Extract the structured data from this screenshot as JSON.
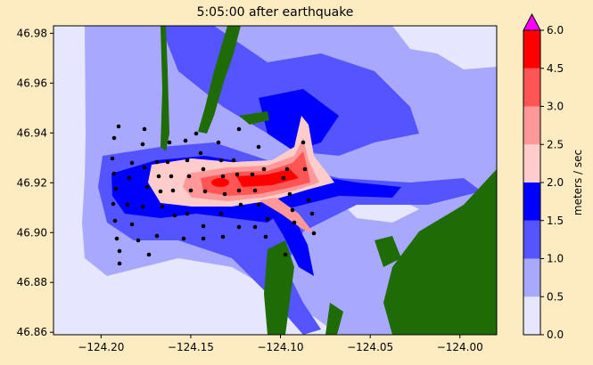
{
  "figure": {
    "title": "5:05:00 after earthquake",
    "background": "#fdebc2"
  },
  "map": {
    "x_ticks": [
      {
        "value": -124.2,
        "label": "−124.20"
      },
      {
        "value": -124.15,
        "label": "−124.15"
      },
      {
        "value": -124.1,
        "label": "−124.10"
      },
      {
        "value": -124.05,
        "label": "−124.05"
      },
      {
        "value": -124.0,
        "label": "−124.00"
      }
    ],
    "y_ticks": [
      {
        "value": 46.86,
        "label": "46.86"
      },
      {
        "value": 46.88,
        "label": "46.88"
      },
      {
        "value": 46.9,
        "label": "46.90"
      },
      {
        "value": 46.92,
        "label": "46.92"
      },
      {
        "value": 46.94,
        "label": "46.94"
      },
      {
        "value": 46.96,
        "label": "46.96"
      },
      {
        "value": 46.98,
        "label": "46.98"
      }
    ],
    "xlim": [
      -124.2265,
      -123.9795
    ],
    "ylim": [
      46.859,
      46.983
    ],
    "land_color": "#1f6b06"
  },
  "colorbar": {
    "label": "meters / sec",
    "extend": "max",
    "extend_color": "#ff00ff",
    "levels": [
      {
        "value": 0.0,
        "label": "0.0",
        "color": "#e6e6ff"
      },
      {
        "value": 0.5,
        "label": "0.5",
        "color": "#a8a8ff"
      },
      {
        "value": 1.0,
        "label": "1.0",
        "color": "#5555ff"
      },
      {
        "value": 1.5,
        "label": "1.5",
        "color": "#0000ff"
      },
      {
        "value": 2.0,
        "label": "2.0",
        "color": "#ffcccc"
      },
      {
        "value": 2.5,
        "label": "2.5",
        "color": "#ff9999"
      },
      {
        "value": 3.0,
        "label": "3.0",
        "color": "#ff5555"
      },
      {
        "value": 4.5,
        "label": "4.5",
        "color": "#ff0000"
      },
      {
        "value": 6.0,
        "label": "6.0",
        "color": ""
      }
    ]
  }
}
